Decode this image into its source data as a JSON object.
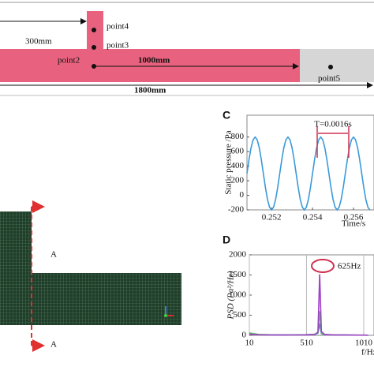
{
  "figure": {
    "dim_branch": "300mm",
    "point4": "point4",
    "point3": "point3",
    "point2": "point2",
    "dim_main": "1000mm",
    "point5": "point5",
    "dim_total": "1800mm",
    "section_top": "A",
    "section_bottom": "A"
  },
  "chart_data": [
    {
      "type": "line",
      "label": "C",
      "y_label": "Static pressure /Pa",
      "x_label": "Time/s",
      "annotation": "T=0.0016s",
      "x": [
        0.2508,
        0.2509,
        0.251,
        0.2511,
        0.2512,
        0.2513,
        0.2514,
        0.2515,
        0.2516,
        0.2517,
        0.2518,
        0.2519,
        0.252,
        0.2521,
        0.2522,
        0.2523,
        0.2524,
        0.2525,
        0.2526,
        0.2527,
        0.2528,
        0.2529,
        0.253,
        0.2531,
        0.2532,
        0.2533,
        0.2534,
        0.2535,
        0.2536,
        0.2537,
        0.2538,
        0.2539,
        0.254,
        0.2541,
        0.2542,
        0.2543,
        0.2544,
        0.2545,
        0.2546,
        0.2547,
        0.2548,
        0.2549,
        0.255,
        0.2551,
        0.2552,
        0.2553,
        0.2554,
        0.2555,
        0.2556,
        0.2557,
        0.2558,
        0.2559,
        0.256,
        0.2561,
        0.2562,
        0.2563,
        0.2564,
        0.2565,
        0.2566,
        0.2567,
        0.2568
      ],
      "series": [
        {
          "color": "#3a9ad9",
          "values": [
            300,
            491,
            654,
            762,
            800,
            762,
            654,
            491,
            300,
            109,
            -54,
            -162,
            -200,
            -162,
            -54,
            109,
            300,
            491,
            654,
            762,
            800,
            762,
            654,
            491,
            300,
            109,
            -54,
            -162,
            -200,
            -162,
            -54,
            109,
            300,
            491,
            654,
            762,
            800,
            762,
            654,
            491,
            300,
            109,
            -54,
            -162,
            -200,
            -162,
            -54,
            109,
            300,
            491,
            654,
            762,
            800,
            762,
            654,
            491,
            300,
            109,
            -54,
            -162,
            -200
          ]
        }
      ],
      "xlim": [
        0.2508,
        0.257
      ],
      "xticks": [
        0.252,
        0.254,
        0.256
      ],
      "ylim": [
        -200,
        1100
      ],
      "yticks": [
        -200,
        0,
        200,
        400,
        600,
        800
      ]
    },
    {
      "type": "line",
      "label": "D",
      "y_label": "PSD (Pa²/Hz)",
      "x_label": "f/Hz",
      "annotation": "625Hz",
      "x": [
        10,
        100,
        200,
        300,
        400,
        500,
        580,
        610,
        625,
        640,
        670,
        750,
        850,
        950,
        1050
      ],
      "series": [
        {
          "color": "#3a7fd9",
          "values": [
            40,
            18,
            12,
            9,
            10,
            14,
            22,
            50,
            300,
            40,
            18,
            10,
            7,
            5,
            4
          ]
        },
        {
          "color": "#5cc45c",
          "values": [
            60,
            20,
            15,
            10,
            12,
            15,
            25,
            60,
            600,
            50,
            20,
            10,
            8,
            6,
            5
          ]
        },
        {
          "color": "#a040c8",
          "values": [
            30,
            15,
            10,
            8,
            10,
            12,
            20,
            80,
            1520,
            90,
            20,
            12,
            8,
            6,
            5
          ]
        }
      ],
      "xlim": [
        10,
        1100
      ],
      "xticks": [
        10,
        510,
        1010
      ],
      "ylim": [
        0,
        2000
      ],
      "yticks": [
        0,
        500,
        1000,
        1500,
        2000
      ],
      "xgrid": true
    }
  ]
}
